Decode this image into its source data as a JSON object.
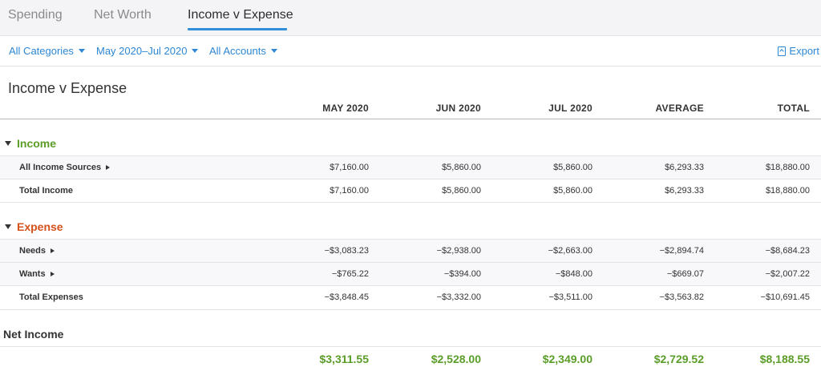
{
  "tabs": [
    {
      "label": "Spending"
    },
    {
      "label": "Net Worth"
    },
    {
      "label": "Income v Expense"
    }
  ],
  "filters": {
    "categories": "All Categories",
    "date_range": "May 2020–Jul 2020",
    "accounts": "All Accounts",
    "export": "Export"
  },
  "report": {
    "title": "Income v Expense",
    "columns": [
      "MAY 2020",
      "JUN 2020",
      "JUL 2020",
      "AVERAGE",
      "TOTAL"
    ],
    "income": {
      "label": "Income",
      "rows": [
        {
          "label": "All Income Sources",
          "values": [
            "$7,160.00",
            "$5,860.00",
            "$5,860.00",
            "$6,293.33",
            "$18,880.00"
          ]
        }
      ],
      "total": {
        "label": "Total Income",
        "values": [
          "$7,160.00",
          "$5,860.00",
          "$5,860.00",
          "$6,293.33",
          "$18,880.00"
        ]
      }
    },
    "expense": {
      "label": "Expense",
      "rows": [
        {
          "label": "Needs",
          "values": [
            "−$3,083.23",
            "−$2,938.00",
            "−$2,663.00",
            "−$2,894.74",
            "−$8,684.23"
          ]
        },
        {
          "label": "Wants",
          "values": [
            "−$765.22",
            "−$394.00",
            "−$848.00",
            "−$669.07",
            "−$2,007.22"
          ]
        }
      ],
      "total": {
        "label": "Total Expenses",
        "values": [
          "−$3,848.45",
          "−$3,332.00",
          "−$3,511.00",
          "−$3,563.82",
          "−$10,691.45"
        ]
      }
    },
    "net_income": {
      "label": "Net Income",
      "values": [
        "$3,311.55",
        "$2,528.00",
        "$2,349.00",
        "$2,729.52",
        "$8,188.55"
      ]
    }
  },
  "colors": {
    "accent": "#2f8fd8",
    "income": "#5a9d28",
    "expense": "#d5501c"
  }
}
